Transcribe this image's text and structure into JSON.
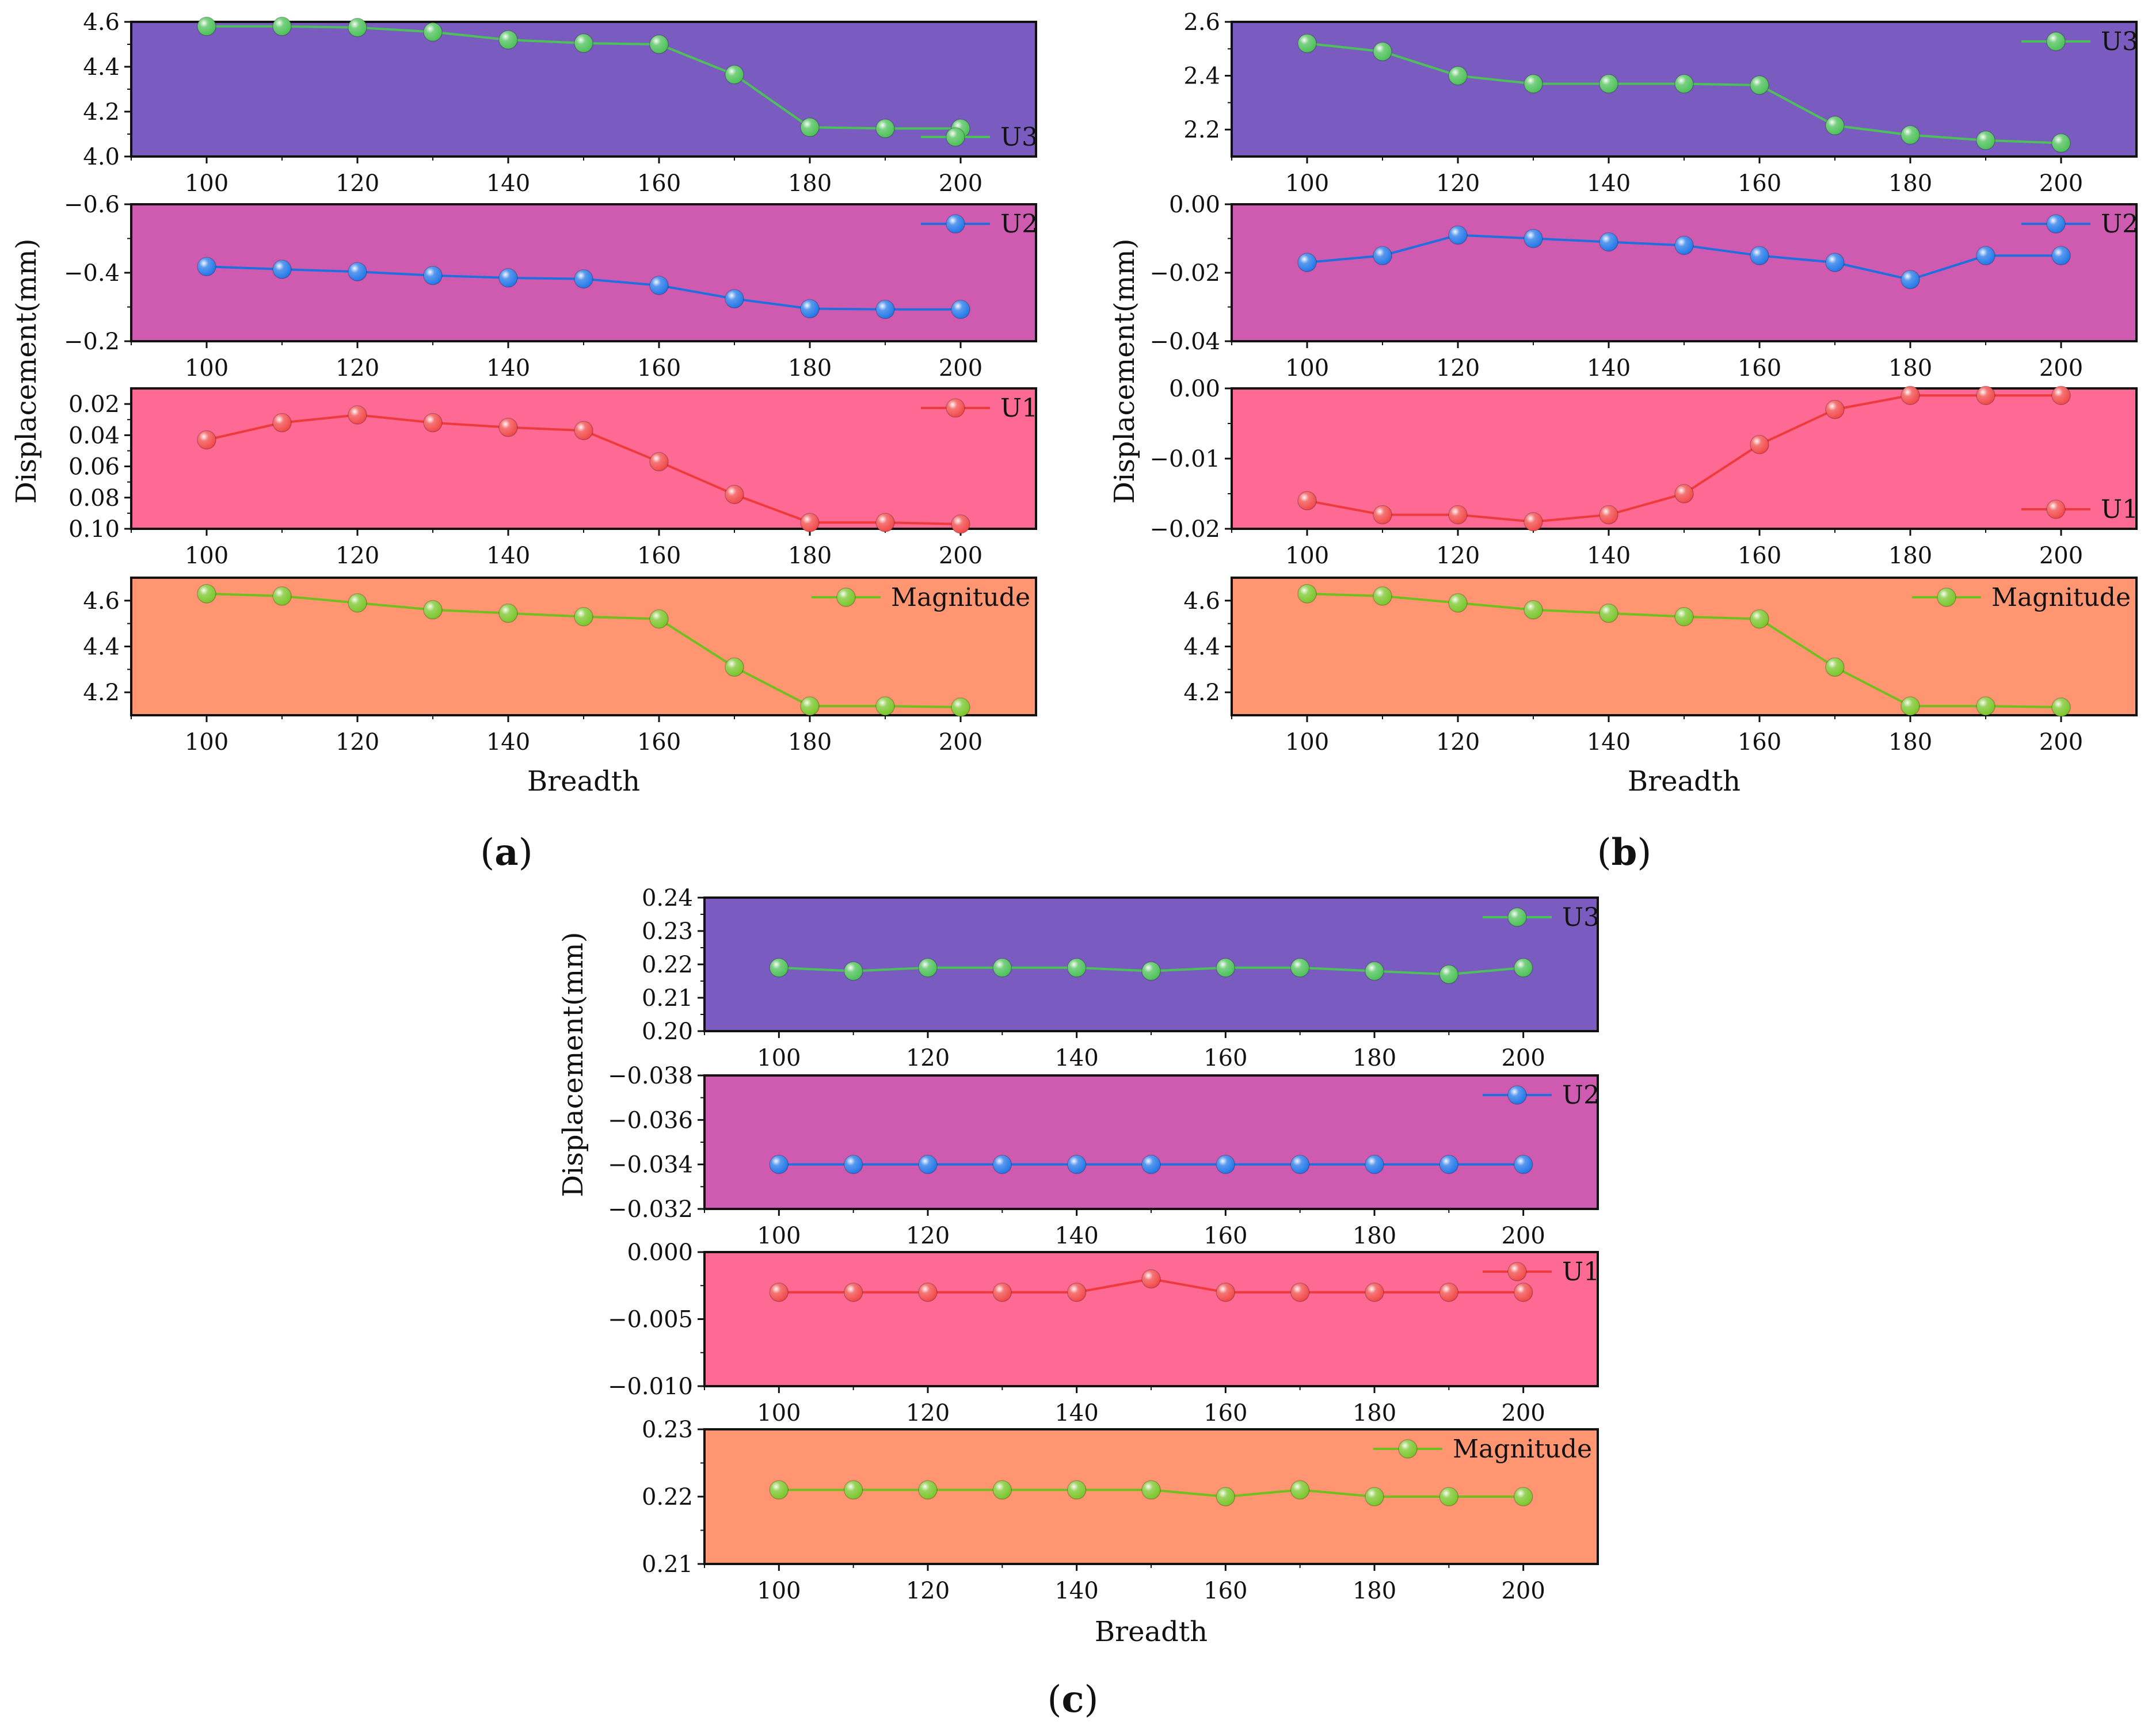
{
  "figure": {
    "panels": [
      {
        "id": "a",
        "caption": "a",
        "ylabel": "Displacement(mm)",
        "xlabel": "Breadth",
        "subplots": [
          {
            "name": "U3",
            "legend": "U3",
            "legend_loc": "bottom-right",
            "bg": "#7a5cc0",
            "color": "#4cc158",
            "marker": "#4cc158",
            "ylim": [
              4.0,
              4.6
            ],
            "invert": false,
            "yticks": [
              4.0,
              4.2,
              4.4,
              4.6
            ],
            "ytick_labels": [
              "4.0",
              "4.2",
              "4.4",
              "4.6"
            ]
          },
          {
            "name": "U2",
            "legend": "U2",
            "legend_loc": "top-right",
            "bg": "#cf5bb0",
            "color": "#1e6fe0",
            "marker": "#2277e8",
            "ylim": [
              -0.2,
              -0.6
            ],
            "invert": true,
            "yticks": [
              -0.6,
              -0.4,
              -0.2
            ],
            "ytick_labels": [
              "-0.6",
              "-0.4",
              "-0.2"
            ]
          },
          {
            "name": "U1",
            "legend": "U1",
            "legend_loc": "top-right",
            "bg": "#ff6a94",
            "color": "#ee3a3a",
            "marker": "#f24848",
            "ylim": [
              0.1,
              0.01
            ],
            "invert": true,
            "yticks": [
              0.02,
              0.04,
              0.06,
              0.08,
              0.1
            ],
            "ytick_labels": [
              "0.02",
              "0.04",
              "0.06",
              "0.08",
              "0.10"
            ]
          },
          {
            "name": "Magnitude",
            "legend": "Magnitude",
            "legend_loc": "top-right",
            "bg": "#ff9671",
            "color": "#6fbf1e",
            "marker": "#7ac62a",
            "ylim": [
              4.1,
              4.7
            ],
            "invert": false,
            "yticks": [
              4.2,
              4.4,
              4.6
            ],
            "ytick_labels": [
              "4.2",
              "4.4",
              "4.6"
            ]
          }
        ]
      },
      {
        "id": "b",
        "caption": "b",
        "ylabel": "Displacement(mm)",
        "xlabel": "Breadth",
        "subplots": [
          {
            "name": "U3",
            "legend": "U3",
            "legend_loc": "top-right",
            "bg": "#7a5cc0",
            "color": "#4cc158",
            "marker": "#4cc158",
            "ylim": [
              2.1,
              2.6
            ],
            "invert": false,
            "yticks": [
              2.2,
              2.4,
              2.6
            ],
            "ytick_labels": [
              "2.2",
              "2.4",
              "2.6"
            ]
          },
          {
            "name": "U2",
            "legend": "U2",
            "legend_loc": "top-right",
            "bg": "#cf5bb0",
            "color": "#1e6fe0",
            "marker": "#2277e8",
            "ylim": [
              -0.04,
              0.0
            ],
            "invert": false,
            "yticks": [
              -0.04,
              -0.02,
              0.0
            ],
            "ytick_labels": [
              "-0.04",
              "-0.02",
              "0.00"
            ]
          },
          {
            "name": "U1",
            "legend": "U1",
            "legend_loc": "bottom-right",
            "bg": "#ff6a94",
            "color": "#ee3a3a",
            "marker": "#f24848",
            "ylim": [
              -0.02,
              0.0
            ],
            "invert": false,
            "yticks": [
              -0.02,
              -0.01,
              0.0
            ],
            "ytick_labels": [
              "-0.02",
              "-0.01",
              "0.00"
            ]
          },
          {
            "name": "Magnitude",
            "legend": "Magnitude",
            "legend_loc": "top-right",
            "bg": "#ff9671",
            "color": "#6fbf1e",
            "marker": "#7ac62a",
            "ylim": [
              4.1,
              4.7
            ],
            "invert": false,
            "yticks": [
              4.2,
              4.4,
              4.6
            ],
            "ytick_labels": [
              "4.2",
              "4.4",
              "4.6"
            ]
          }
        ]
      },
      {
        "id": "c",
        "caption": "c",
        "ylabel": "Displacement(mm)",
        "xlabel": "Breadth",
        "subplots": [
          {
            "name": "U3",
            "legend": "U3",
            "legend_loc": "top-right",
            "bg": "#7a5cc0",
            "color": "#4cc158",
            "marker": "#4cc158",
            "ylim": [
              0.2,
              0.24
            ],
            "invert": false,
            "yticks": [
              0.2,
              0.21,
              0.22,
              0.23,
              0.24
            ],
            "ytick_labels": [
              "0.20",
              "0.21",
              "0.22",
              "0.23",
              "0.24"
            ]
          },
          {
            "name": "U2",
            "legend": "U2",
            "legend_loc": "top-right",
            "bg": "#cf5bb0",
            "color": "#1e6fe0",
            "marker": "#2277e8",
            "ylim": [
              -0.032,
              -0.038
            ],
            "invert": true,
            "yticks": [
              -0.038,
              -0.036,
              -0.034,
              -0.032
            ],
            "ytick_labels": [
              "-0.038",
              "-0.036",
              "-0.034",
              "-0.032"
            ]
          },
          {
            "name": "U1",
            "legend": "U1",
            "legend_loc": "top-right",
            "bg": "#ff6a94",
            "color": "#ee3a3a",
            "marker": "#f24848",
            "ylim": [
              -0.01,
              0.0
            ],
            "invert": false,
            "yticks": [
              -0.01,
              -0.005,
              0.0
            ],
            "ytick_labels": [
              "-0.010",
              "-0.005",
              "0.000"
            ]
          },
          {
            "name": "Magnitude",
            "legend": "Magnitude",
            "legend_loc": "top-right",
            "bg": "#ff9671",
            "color": "#6fbf1e",
            "marker": "#7ac62a",
            "ylim": [
              0.21,
              0.23
            ],
            "invert": false,
            "yticks": [
              0.21,
              0.22,
              0.23
            ],
            "ytick_labels": [
              "0.21",
              "0.22",
              "0.23"
            ]
          }
        ]
      }
    ]
  },
  "chart_data": [
    {
      "type": "line",
      "panel": "a",
      "xlabel": "Breadth",
      "ylabel": "Displacement(mm)",
      "xlim": [
        90,
        210
      ],
      "xticks": [
        100,
        120,
        140,
        160,
        180,
        200
      ],
      "x": [
        100,
        110,
        120,
        130,
        140,
        150,
        160,
        170,
        180,
        190,
        200
      ],
      "series": [
        {
          "name": "U3",
          "values": [
            4.58,
            4.58,
            4.575,
            4.555,
            4.52,
            4.505,
            4.5,
            4.365,
            4.13,
            4.125,
            4.125
          ]
        },
        {
          "name": "U2",
          "values": [
            -0.418,
            -0.41,
            -0.403,
            -0.392,
            -0.385,
            -0.382,
            -0.363,
            -0.324,
            -0.295,
            -0.293,
            -0.293
          ]
        },
        {
          "name": "U1",
          "values": [
            0.043,
            0.032,
            0.027,
            0.032,
            0.035,
            0.037,
            0.057,
            0.078,
            0.096,
            0.096,
            0.097
          ]
        },
        {
          "name": "Magnitude",
          "values": [
            4.63,
            4.62,
            4.59,
            4.56,
            4.545,
            4.53,
            4.52,
            4.31,
            4.14,
            4.14,
            4.135
          ]
        }
      ]
    },
    {
      "type": "line",
      "panel": "b",
      "xlabel": "Breadth",
      "ylabel": "Displacement(mm)",
      "xlim": [
        90,
        210
      ],
      "xticks": [
        100,
        120,
        140,
        160,
        180,
        200
      ],
      "x": [
        100,
        110,
        120,
        130,
        140,
        150,
        160,
        170,
        180,
        190,
        200
      ],
      "series": [
        {
          "name": "U3",
          "values": [
            2.52,
            2.49,
            2.4,
            2.37,
            2.37,
            2.37,
            2.365,
            2.215,
            2.18,
            2.16,
            2.15
          ]
        },
        {
          "name": "U2",
          "values": [
            -0.017,
            -0.015,
            -0.009,
            -0.01,
            -0.011,
            -0.012,
            -0.015,
            -0.017,
            -0.022,
            -0.015,
            -0.015
          ]
        },
        {
          "name": "U1",
          "values": [
            -0.016,
            -0.018,
            -0.018,
            -0.019,
            -0.018,
            -0.015,
            -0.008,
            -0.003,
            -0.001,
            -0.001,
            -0.001
          ]
        },
        {
          "name": "Magnitude",
          "values": [
            4.63,
            4.62,
            4.59,
            4.56,
            4.545,
            4.53,
            4.52,
            4.31,
            4.14,
            4.14,
            4.135
          ]
        }
      ]
    },
    {
      "type": "line",
      "panel": "c",
      "xlabel": "Breadth",
      "ylabel": "Displacement(mm)",
      "xlim": [
        90,
        210
      ],
      "xticks": [
        100,
        120,
        140,
        160,
        180,
        200
      ],
      "x": [
        100,
        110,
        120,
        130,
        140,
        150,
        160,
        170,
        180,
        190,
        200
      ],
      "series": [
        {
          "name": "U3",
          "values": [
            0.219,
            0.218,
            0.219,
            0.219,
            0.219,
            0.218,
            0.219,
            0.219,
            0.218,
            0.217,
            0.219
          ]
        },
        {
          "name": "U2",
          "values": [
            -0.034,
            -0.034,
            -0.034,
            -0.034,
            -0.034,
            -0.034,
            -0.034,
            -0.034,
            -0.034,
            -0.034,
            -0.034
          ]
        },
        {
          "name": "U1",
          "values": [
            -0.003,
            -0.003,
            -0.003,
            -0.003,
            -0.003,
            -0.002,
            -0.003,
            -0.003,
            -0.003,
            -0.003,
            -0.003
          ]
        },
        {
          "name": "Magnitude",
          "values": [
            0.221,
            0.221,
            0.221,
            0.221,
            0.221,
            0.221,
            0.22,
            0.221,
            0.22,
            0.22,
            0.22
          ]
        }
      ]
    }
  ]
}
